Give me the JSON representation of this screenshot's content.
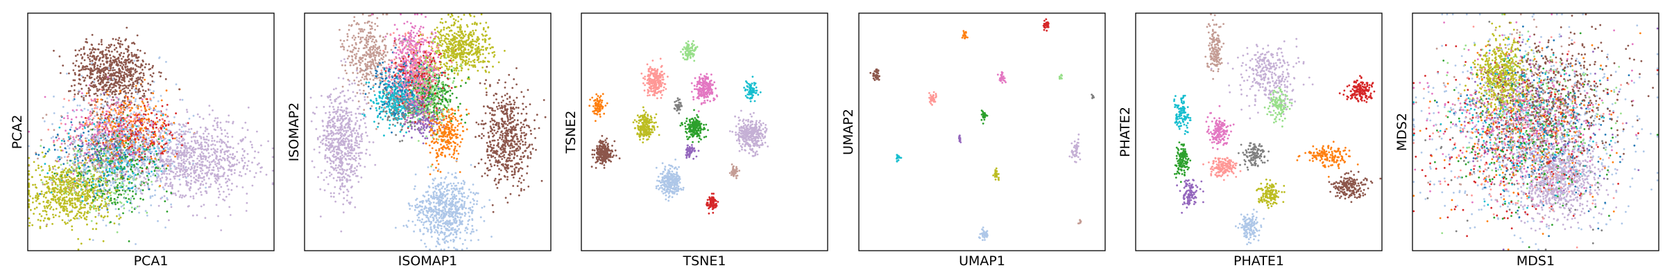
{
  "chart_data": [
    {
      "type": "scatter",
      "xlabel": "PCA1",
      "ylabel": "PCA2",
      "ticks": "none",
      "clusters": [
        {
          "color": "#8c564b",
          "cx": 0.34,
          "cy": 0.75,
          "sx": 0.075,
          "sy": 0.07,
          "n": 700
        },
        {
          "color": "#c5b0d5",
          "cx": 0.67,
          "cy": 0.38,
          "sx": 0.12,
          "sy": 0.08,
          "n": 850
        },
        {
          "color": "#bcbd22",
          "cx": 0.18,
          "cy": 0.24,
          "sx": 0.09,
          "sy": 0.07,
          "n": 650
        },
        {
          "color": "#aec7e8",
          "cx": 0.38,
          "cy": 0.42,
          "sx": 0.12,
          "sy": 0.13,
          "n": 600
        },
        {
          "color": "#ff7f0e",
          "cx": 0.42,
          "cy": 0.52,
          "sx": 0.08,
          "sy": 0.08,
          "n": 250
        },
        {
          "color": "#d62728",
          "cx": 0.47,
          "cy": 0.5,
          "sx": 0.08,
          "sy": 0.06,
          "n": 180
        },
        {
          "color": "#2ca02c",
          "cx": 0.37,
          "cy": 0.33,
          "sx": 0.1,
          "sy": 0.08,
          "n": 220
        },
        {
          "color": "#1f77b4",
          "cx": 0.3,
          "cy": 0.4,
          "sx": 0.12,
          "sy": 0.08,
          "n": 120
        },
        {
          "color": "#17becf",
          "cx": 0.34,
          "cy": 0.38,
          "sx": 0.1,
          "sy": 0.08,
          "n": 150
        },
        {
          "color": "#e377c2",
          "cx": 0.3,
          "cy": 0.5,
          "sx": 0.1,
          "sy": 0.08,
          "n": 180
        },
        {
          "color": "#ff9896",
          "cx": 0.32,
          "cy": 0.52,
          "sx": 0.09,
          "sy": 0.07,
          "n": 150
        },
        {
          "color": "#98df8a",
          "cx": 0.28,
          "cy": 0.3,
          "sx": 0.1,
          "sy": 0.07,
          "n": 150
        },
        {
          "color": "#9467bd",
          "cx": 0.35,
          "cy": 0.45,
          "sx": 0.08,
          "sy": 0.06,
          "n": 120
        },
        {
          "color": "#7f7f7f",
          "cx": 0.34,
          "cy": 0.44,
          "sx": 0.08,
          "sy": 0.06,
          "n": 110
        },
        {
          "color": "#c49c94",
          "cx": 0.26,
          "cy": 0.36,
          "sx": 0.1,
          "sy": 0.08,
          "n": 150
        }
      ]
    },
    {
      "type": "scatter",
      "xlabel": "ISOMAP1",
      "ylabel": "ISOMAP2",
      "ticks": "none",
      "clusters": [
        {
          "color": "#c5b0d5",
          "cx": 0.15,
          "cy": 0.46,
          "sx": 0.045,
          "sy": 0.11,
          "n": 600
        },
        {
          "color": "#aec7e8",
          "cx": 0.57,
          "cy": 0.17,
          "sx": 0.06,
          "sy": 0.07,
          "n": 650
        },
        {
          "color": "#8c564b",
          "cx": 0.82,
          "cy": 0.47,
          "sx": 0.05,
          "sy": 0.1,
          "n": 550
        },
        {
          "color": "#bcbd22",
          "cx": 0.63,
          "cy": 0.86,
          "sx": 0.06,
          "sy": 0.06,
          "n": 500
        },
        {
          "color": "#c49c94",
          "cx": 0.26,
          "cy": 0.82,
          "sx": 0.05,
          "sy": 0.08,
          "n": 350
        },
        {
          "color": "#e377c2",
          "cx": 0.44,
          "cy": 0.78,
          "sx": 0.045,
          "sy": 0.09,
          "n": 450
        },
        {
          "color": "#98df8a",
          "cx": 0.5,
          "cy": 0.67,
          "sx": 0.05,
          "sy": 0.08,
          "n": 300
        },
        {
          "color": "#17becf",
          "cx": 0.37,
          "cy": 0.63,
          "sx": 0.05,
          "sy": 0.05,
          "n": 300
        },
        {
          "color": "#1f77b4",
          "cx": 0.4,
          "cy": 0.7,
          "sx": 0.06,
          "sy": 0.06,
          "n": 200
        },
        {
          "color": "#9467bd",
          "cx": 0.48,
          "cy": 0.57,
          "sx": 0.035,
          "sy": 0.05,
          "n": 200
        },
        {
          "color": "#ff7f0e",
          "cx": 0.58,
          "cy": 0.49,
          "sx": 0.035,
          "sy": 0.06,
          "n": 250
        },
        {
          "color": "#ff9896",
          "cx": 0.45,
          "cy": 0.73,
          "sx": 0.05,
          "sy": 0.08,
          "n": 300
        },
        {
          "color": "#2ca02c",
          "cx": 0.52,
          "cy": 0.64,
          "sx": 0.05,
          "sy": 0.05,
          "n": 200
        },
        {
          "color": "#d62728",
          "cx": 0.47,
          "cy": 0.74,
          "sx": 0.05,
          "sy": 0.07,
          "n": 200
        },
        {
          "color": "#7f7f7f",
          "cx": 0.4,
          "cy": 0.6,
          "sx": 0.04,
          "sy": 0.05,
          "n": 150
        }
      ]
    },
    {
      "type": "scatter",
      "xlabel": "TSNE1",
      "ylabel": "TSNE2",
      "ticks": "none",
      "clusters": [
        {
          "color": "#ff7f0e",
          "cx": 0.07,
          "cy": 0.61,
          "sx": 0.012,
          "sy": 0.018,
          "n": 90
        },
        {
          "color": "#8c564b",
          "cx": 0.09,
          "cy": 0.41,
          "sx": 0.018,
          "sy": 0.025,
          "n": 220
        },
        {
          "color": "#ff9896",
          "cx": 0.3,
          "cy": 0.71,
          "sx": 0.02,
          "sy": 0.03,
          "n": 220
        },
        {
          "color": "#bcbd22",
          "cx": 0.26,
          "cy": 0.52,
          "sx": 0.02,
          "sy": 0.028,
          "n": 200
        },
        {
          "color": "#98df8a",
          "cx": 0.44,
          "cy": 0.84,
          "sx": 0.012,
          "sy": 0.018,
          "n": 90
        },
        {
          "color": "#e377c2",
          "cx": 0.5,
          "cy": 0.68,
          "sx": 0.018,
          "sy": 0.028,
          "n": 200
        },
        {
          "color": "#7f7f7f",
          "cx": 0.39,
          "cy": 0.61,
          "sx": 0.008,
          "sy": 0.012,
          "n": 40
        },
        {
          "color": "#17becf",
          "cx": 0.69,
          "cy": 0.67,
          "sx": 0.012,
          "sy": 0.018,
          "n": 90
        },
        {
          "color": "#2ca02c",
          "cx": 0.46,
          "cy": 0.52,
          "sx": 0.018,
          "sy": 0.025,
          "n": 190
        },
        {
          "color": "#c5b0d5",
          "cx": 0.69,
          "cy": 0.49,
          "sx": 0.028,
          "sy": 0.035,
          "n": 340
        },
        {
          "color": "#9467bd",
          "cx": 0.44,
          "cy": 0.42,
          "sx": 0.01,
          "sy": 0.015,
          "n": 60
        },
        {
          "color": "#aec7e8",
          "cx": 0.36,
          "cy": 0.29,
          "sx": 0.022,
          "sy": 0.03,
          "n": 260
        },
        {
          "color": "#c49c94",
          "cx": 0.62,
          "cy": 0.33,
          "sx": 0.008,
          "sy": 0.012,
          "n": 40
        },
        {
          "color": "#d62728",
          "cx": 0.53,
          "cy": 0.2,
          "sx": 0.01,
          "sy": 0.015,
          "n": 70
        }
      ]
    },
    {
      "type": "scatter",
      "xlabel": "UMAP1",
      "ylabel": "UMAP2",
      "ticks": "none",
      "clusters": [
        {
          "color": "#d62728",
          "cx": 0.76,
          "cy": 0.95,
          "sx": 0.006,
          "sy": 0.01,
          "n": 30
        },
        {
          "color": "#ff7f0e",
          "cx": 0.43,
          "cy": 0.91,
          "sx": 0.005,
          "sy": 0.008,
          "n": 20
        },
        {
          "color": "#8c564b",
          "cx": 0.07,
          "cy": 0.74,
          "sx": 0.008,
          "sy": 0.012,
          "n": 40
        },
        {
          "color": "#e377c2",
          "cx": 0.58,
          "cy": 0.73,
          "sx": 0.006,
          "sy": 0.012,
          "n": 30
        },
        {
          "color": "#98df8a",
          "cx": 0.82,
          "cy": 0.73,
          "sx": 0.004,
          "sy": 0.008,
          "n": 12
        },
        {
          "color": "#ff9896",
          "cx": 0.3,
          "cy": 0.64,
          "sx": 0.008,
          "sy": 0.012,
          "n": 40
        },
        {
          "color": "#7f7f7f",
          "cx": 0.95,
          "cy": 0.65,
          "sx": 0.003,
          "sy": 0.006,
          "n": 8
        },
        {
          "color": "#2ca02c",
          "cx": 0.51,
          "cy": 0.57,
          "sx": 0.007,
          "sy": 0.01,
          "n": 30
        },
        {
          "color": "#9467bd",
          "cx": 0.41,
          "cy": 0.47,
          "sx": 0.004,
          "sy": 0.008,
          "n": 15
        },
        {
          "color": "#c5b0d5",
          "cx": 0.88,
          "cy": 0.42,
          "sx": 0.008,
          "sy": 0.02,
          "n": 50
        },
        {
          "color": "#17becf",
          "cx": 0.16,
          "cy": 0.39,
          "sx": 0.004,
          "sy": 0.008,
          "n": 15
        },
        {
          "color": "#bcbd22",
          "cx": 0.56,
          "cy": 0.32,
          "sx": 0.006,
          "sy": 0.012,
          "n": 30
        },
        {
          "color": "#c49c94",
          "cx": 0.9,
          "cy": 0.12,
          "sx": 0.003,
          "sy": 0.006,
          "n": 8
        },
        {
          "color": "#aec7e8",
          "cx": 0.51,
          "cy": 0.07,
          "sx": 0.008,
          "sy": 0.012,
          "n": 35
        }
      ]
    },
    {
      "type": "scatter",
      "xlabel": "PHATE1",
      "ylabel": "PHATE2",
      "ticks": "none",
      "clusters": [
        {
          "color": "#c49c94",
          "cx": 0.32,
          "cy": 0.85,
          "sx": 0.015,
          "sy": 0.06,
          "n": 150
        },
        {
          "color": "#c5b0d5",
          "cx": 0.54,
          "cy": 0.74,
          "sx": 0.06,
          "sy": 0.06,
          "n": 300
        },
        {
          "color": "#d62728",
          "cx": 0.91,
          "cy": 0.67,
          "sx": 0.025,
          "sy": 0.025,
          "n": 150
        },
        {
          "color": "#98df8a",
          "cx": 0.58,
          "cy": 0.62,
          "sx": 0.02,
          "sy": 0.03,
          "n": 120
        },
        {
          "color": "#17becf",
          "cx": 0.19,
          "cy": 0.57,
          "sx": 0.015,
          "sy": 0.035,
          "n": 110
        },
        {
          "color": "#e377c2",
          "cx": 0.34,
          "cy": 0.5,
          "sx": 0.022,
          "sy": 0.03,
          "n": 140
        },
        {
          "color": "#2ca02c",
          "cx": 0.19,
          "cy": 0.38,
          "sx": 0.015,
          "sy": 0.035,
          "n": 120
        },
        {
          "color": "#7f7f7f",
          "cx": 0.48,
          "cy": 0.4,
          "sx": 0.025,
          "sy": 0.025,
          "n": 120
        },
        {
          "color": "#ff9896",
          "cx": 0.36,
          "cy": 0.35,
          "sx": 0.025,
          "sy": 0.02,
          "n": 160
        },
        {
          "color": "#ff7f0e",
          "cx": 0.78,
          "cy": 0.4,
          "sx": 0.04,
          "sy": 0.02,
          "n": 150
        },
        {
          "color": "#9467bd",
          "cx": 0.22,
          "cy": 0.24,
          "sx": 0.018,
          "sy": 0.03,
          "n": 100
        },
        {
          "color": "#bcbd22",
          "cx": 0.54,
          "cy": 0.24,
          "sx": 0.025,
          "sy": 0.025,
          "n": 130
        },
        {
          "color": "#8c564b",
          "cx": 0.87,
          "cy": 0.27,
          "sx": 0.035,
          "sy": 0.025,
          "n": 180
        },
        {
          "color": "#aec7e8",
          "cx": 0.46,
          "cy": 0.1,
          "sx": 0.02,
          "sy": 0.03,
          "n": 130
        }
      ]
    },
    {
      "type": "scatter",
      "xlabel": "MDS1",
      "ylabel": "MDS2",
      "ticks": "none",
      "clusters": [
        {
          "color": "#aec7e8",
          "cx": 0.5,
          "cy": 0.52,
          "sx": 0.2,
          "sy": 0.2,
          "n": 700
        },
        {
          "color": "#c5b0d5",
          "cx": 0.6,
          "cy": 0.29,
          "sx": 0.08,
          "sy": 0.08,
          "n": 700
        },
        {
          "color": "#bcbd22",
          "cx": 0.36,
          "cy": 0.74,
          "sx": 0.05,
          "sy": 0.08,
          "n": 500
        },
        {
          "color": "#8c564b",
          "cx": 0.58,
          "cy": 0.66,
          "sx": 0.13,
          "sy": 0.13,
          "n": 450
        },
        {
          "color": "#e377c2",
          "cx": 0.44,
          "cy": 0.56,
          "sx": 0.16,
          "sy": 0.16,
          "n": 350
        },
        {
          "color": "#d62728",
          "cx": 0.42,
          "cy": 0.46,
          "sx": 0.17,
          "sy": 0.17,
          "n": 250
        },
        {
          "color": "#ff7f0e",
          "cx": 0.45,
          "cy": 0.5,
          "sx": 0.17,
          "sy": 0.17,
          "n": 200
        },
        {
          "color": "#2ca02c",
          "cx": 0.47,
          "cy": 0.44,
          "sx": 0.16,
          "sy": 0.16,
          "n": 200
        },
        {
          "color": "#1f77b4",
          "cx": 0.5,
          "cy": 0.5,
          "sx": 0.16,
          "sy": 0.16,
          "n": 180
        },
        {
          "color": "#17becf",
          "cx": 0.43,
          "cy": 0.55,
          "sx": 0.15,
          "sy": 0.15,
          "n": 180
        },
        {
          "color": "#ff9896",
          "cx": 0.46,
          "cy": 0.48,
          "sx": 0.16,
          "sy": 0.16,
          "n": 200
        },
        {
          "color": "#98df8a",
          "cx": 0.5,
          "cy": 0.6,
          "sx": 0.15,
          "sy": 0.15,
          "n": 180
        },
        {
          "color": "#9467bd",
          "cx": 0.48,
          "cy": 0.52,
          "sx": 0.16,
          "sy": 0.16,
          "n": 150
        },
        {
          "color": "#7f7f7f",
          "cx": 0.5,
          "cy": 0.46,
          "sx": 0.16,
          "sy": 0.16,
          "n": 150
        },
        {
          "color": "#c49c94",
          "cx": 0.42,
          "cy": 0.6,
          "sx": 0.15,
          "sy": 0.15,
          "n": 180
        }
      ]
    }
  ]
}
